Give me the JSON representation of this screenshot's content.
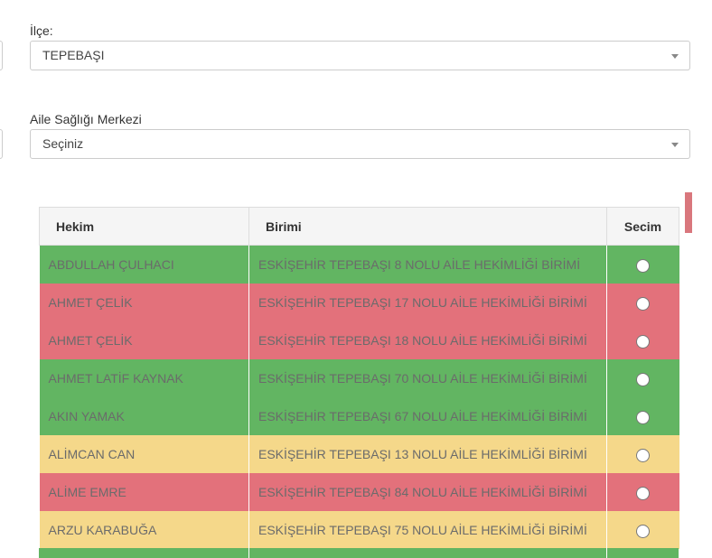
{
  "district": {
    "label": "İlçe:",
    "value": "TEPEBAŞI"
  },
  "center": {
    "label": "Aile Sağlığı Merkezi",
    "value": "Seçiniz"
  },
  "table": {
    "columns": [
      "Hekim",
      "Birimi",
      "Secim"
    ],
    "rows": [
      {
        "hekim": "ABDULLAH ÇULHACI",
        "birimi": "ESKİŞEHİR TEPEBAŞI 8 NOLU AİLE HEKİMLİĞİ BİRİMİ",
        "color": "#62b562"
      },
      {
        "hekim": "AHMET ÇELİK",
        "birimi": "ESKİŞEHİR TEPEBAŞI 17 NOLU AİLE HEKİMLİĞİ BİRİMİ",
        "color": "#e3717b"
      },
      {
        "hekim": "AHMET ÇELİK",
        "birimi": "ESKİŞEHİR TEPEBAŞI 18 NOLU AİLE HEKİMLİĞİ BİRİMİ",
        "color": "#e3717b"
      },
      {
        "hekim": "AHMET LATİF KAYNAK",
        "birimi": "ESKİŞEHİR TEPEBAŞI 70 NOLU AİLE HEKİMLİĞİ BİRİMİ",
        "color": "#62b562"
      },
      {
        "hekim": "AKIN YAMAK",
        "birimi": "ESKİŞEHİR TEPEBAŞI 67 NOLU AİLE HEKİMLİĞİ BİRİMİ",
        "color": "#62b562"
      },
      {
        "hekim": "ALİMCAN CAN",
        "birimi": "ESKİŞEHİR TEPEBAŞI 13 NOLU AİLE HEKİMLİĞİ BİRİMİ",
        "color": "#f5d88a"
      },
      {
        "hekim": "ALİME EMRE",
        "birimi": "ESKİŞEHİR TEPEBAŞI 84 NOLU AİLE HEKİMLİĞİ BİRİMİ",
        "color": "#e3717b"
      },
      {
        "hekim": "ARZU KARABUĞA",
        "birimi": "ESKİŞEHİR TEPEBAŞI 75 NOLU AİLE HEKİMLİĞİ BİRİMİ",
        "color": "#f5d88a"
      }
    ]
  }
}
